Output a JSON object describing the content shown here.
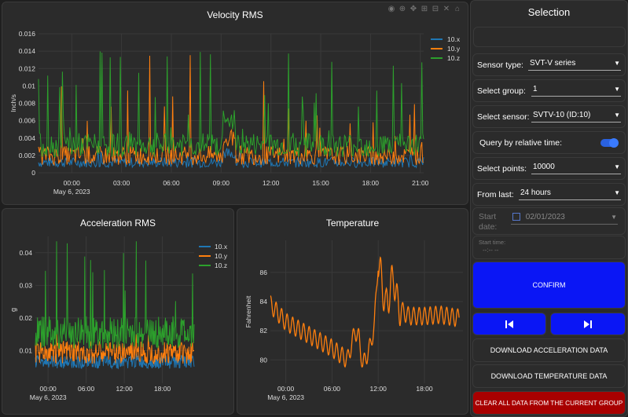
{
  "charts": {
    "velocity": {
      "title": "Velocity RMS",
      "ylabel": "Inch/s",
      "yticks": [
        "0",
        "0.002",
        "0.004",
        "0.006",
        "0.008",
        "0.01",
        "0.012",
        "0.014",
        "0.016"
      ],
      "xticks": [
        "00:00",
        "03:00",
        "06:00",
        "09:00",
        "12:00",
        "15:00",
        "18:00",
        "21:00"
      ],
      "xsub": "May 6, 2023",
      "legend": [
        "10.x",
        "10.y",
        "10.z"
      ]
    },
    "acceleration": {
      "title": "Acceleration RMS",
      "ylabel": "g",
      "yticks": [
        "0.01",
        "0.02",
        "0.03",
        "0.04"
      ],
      "xticks": [
        "00:00",
        "06:00",
        "12:00",
        "18:00"
      ],
      "xsub": "May 6, 2023",
      "legend": [
        "10.x",
        "10.y",
        "10.z"
      ]
    },
    "temperature": {
      "title": "Temperature",
      "ylabel": "Fahrenheit",
      "yticks": [
        "80",
        "82",
        "84",
        "86"
      ],
      "xticks": [
        "00:00",
        "06:00",
        "12:00",
        "18:00"
      ],
      "xsub": "May 6, 2023"
    }
  },
  "colors": {
    "series_x": "#1f77b4",
    "series_y": "#ff7f0e",
    "series_z": "#2ca02c",
    "confirm": "#0a16f5",
    "danger": "#a80000"
  },
  "chart_data": [
    {
      "type": "line",
      "title": "Velocity RMS",
      "ylabel": "Inch/s",
      "xlabel": "",
      "ylim": [
        0,
        0.016
      ],
      "x_range": [
        "2023-05-05 22:00",
        "2023-05-06 21:00"
      ],
      "series": [
        {
          "name": "10.x",
          "typical": 0.0015,
          "max": 0.003
        },
        {
          "name": "10.y",
          "typical": 0.0025,
          "max": 0.0137
        },
        {
          "name": "10.z",
          "typical": 0.003,
          "max": 0.0143
        }
      ]
    },
    {
      "type": "line",
      "title": "Acceleration RMS",
      "ylabel": "g",
      "xlabel": "",
      "ylim": [
        0,
        0.045
      ],
      "x_range": [
        "2023-05-05 22:00",
        "2023-05-06 23:00"
      ],
      "series": [
        {
          "name": "10.x",
          "typical": 0.006,
          "max": 0.009
        },
        {
          "name": "10.y",
          "typical": 0.009,
          "max": 0.015
        },
        {
          "name": "10.z",
          "typical": 0.015,
          "max": 0.0435
        }
      ]
    },
    {
      "type": "line",
      "title": "Temperature",
      "ylabel": "Fahrenheit",
      "xlabel": "",
      "ylim": [
        78.4,
        88.2
      ],
      "series": [
        {
          "name": "",
          "x_hours": [
            -2,
            0,
            2,
            4,
            6,
            8,
            9,
            9.5,
            10,
            10.5,
            11,
            11.5,
            12,
            13,
            14,
            14.5,
            15,
            16,
            18,
            20,
            22
          ],
          "values": [
            83.8,
            82.6,
            82.0,
            81.4,
            80.8,
            80.0,
            82.0,
            81.5,
            79.6,
            80.3,
            81.0,
            82.4,
            86.8,
            83.6,
            85.8,
            83.8,
            83.4,
            83.0,
            83.0,
            83.1,
            82.9
          ]
        }
      ]
    }
  ],
  "sidebar": {
    "title": "Selection",
    "sensor_type": {
      "label": "Sensor type:",
      "value": "SVT-V series"
    },
    "group": {
      "label": "Select group:",
      "value": "1"
    },
    "sensor": {
      "label": "Select sensor:",
      "value": "SVTV-10 (ID:10)"
    },
    "relative": {
      "label": "Query by relative time:",
      "on": true
    },
    "points": {
      "label": "Select points:",
      "value": "10000"
    },
    "from_last": {
      "label": "From last:",
      "value": "24 hours"
    },
    "start_date": {
      "label_line1": "Start",
      "label_line2": "date:",
      "value": "02/01/2023"
    },
    "start_time": {
      "label": "Start time:",
      "value": "--:-- --"
    },
    "confirm": "CONFIRM",
    "prev_icon": "skip-previous-icon",
    "next_icon": "skip-next-icon",
    "download_accel": "DOWNLOAD ACCELERATION DATA",
    "download_temp": "DOWNLOAD TEMPERATURE DATA",
    "clear_all": "CLEAR ALL DATA FROM THE CURRENT GROUP"
  }
}
